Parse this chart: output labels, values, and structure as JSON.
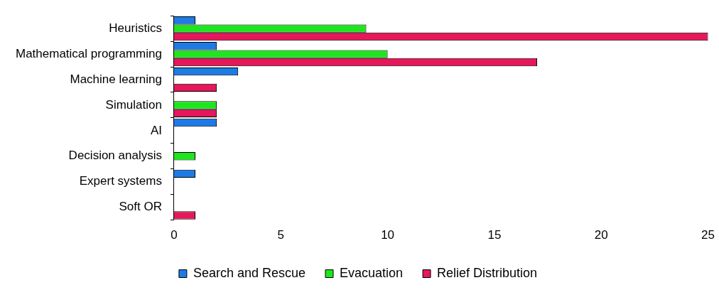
{
  "chart_data": {
    "type": "bar",
    "orientation": "horizontal",
    "categories": [
      "Heuristics",
      "Mathematical programming",
      "Machine learning",
      "Simulation",
      "AI",
      "Decision analysis",
      "Expert systems",
      "Soft OR"
    ],
    "series": [
      {
        "name": "Search and Rescue",
        "color": "#1e7be6",
        "values": [
          1,
          2,
          3,
          0,
          2,
          0,
          1,
          0
        ]
      },
      {
        "name": "Evacuation",
        "color": "#1ee61e",
        "values": [
          9,
          10,
          0,
          2,
          0,
          1,
          0,
          0
        ]
      },
      {
        "name": "Relief Distribution",
        "color": "#e6175a",
        "values": [
          25,
          17,
          2,
          2,
          0,
          0,
          0,
          1
        ]
      }
    ],
    "xlim": [
      0,
      25
    ],
    "xticks": [
      0,
      5,
      10,
      15,
      20,
      25
    ],
    "grid": false,
    "legend": "bottom"
  }
}
